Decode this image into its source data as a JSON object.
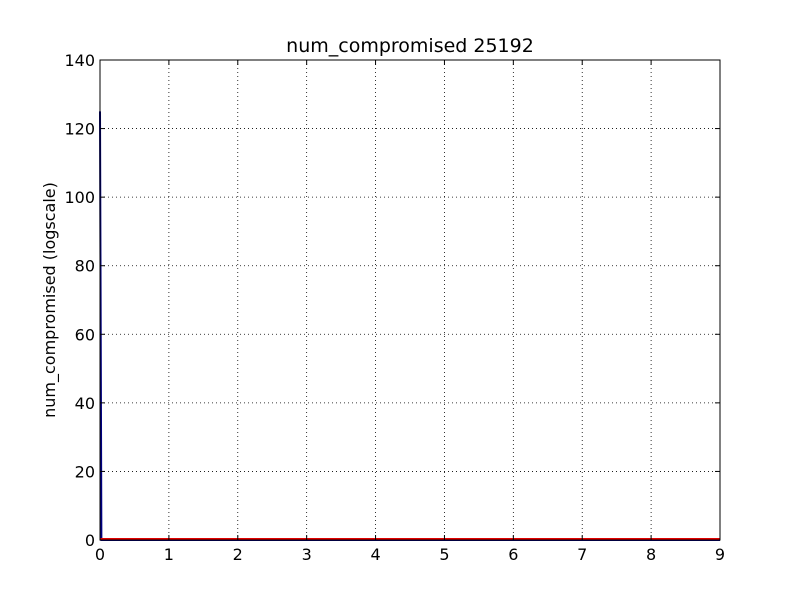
{
  "chart_data": {
    "type": "line",
    "title": "num_compromised 25192",
    "xlabel": "",
    "ylabel": "num_compromised (logscale)",
    "xlim": [
      0,
      9
    ],
    "ylim": [
      0,
      140
    ],
    "x_ticks": [
      "0",
      "1",
      "2",
      "3",
      "4",
      "5",
      "6",
      "7",
      "8",
      "9"
    ],
    "y_ticks": [
      "0",
      "20",
      "40",
      "60",
      "80",
      "100",
      "120",
      "140"
    ],
    "grid": true,
    "series": [
      {
        "color": "#00007f",
        "x": [
          0,
          0.02,
          0.04,
          0.06,
          9
        ],
        "y": [
          125,
          0,
          0,
          0,
          0
        ]
      },
      {
        "color": "#e00000",
        "x": [
          0,
          9
        ],
        "y": [
          0.3,
          0.3
        ]
      }
    ]
  }
}
